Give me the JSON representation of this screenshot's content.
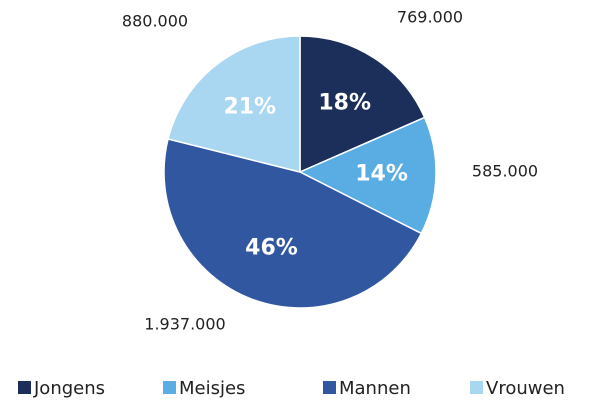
{
  "chart_data": {
    "type": "pie",
    "categories": [
      "Jongens",
      "Meisjes",
      "Mannen",
      "Vrouwen"
    ],
    "values": [
      769000,
      585000,
      1937000,
      880000
    ],
    "value_labels": [
      "769.000",
      "585.000",
      "1.937.000",
      "880.000"
    ],
    "percent_labels": [
      "18%",
      "14%",
      "46%",
      "21%"
    ],
    "colors": [
      "#1c2f5b",
      "#5aade3",
      "#3157a0",
      "#a9d6f1"
    ],
    "legend": "bottom"
  }
}
